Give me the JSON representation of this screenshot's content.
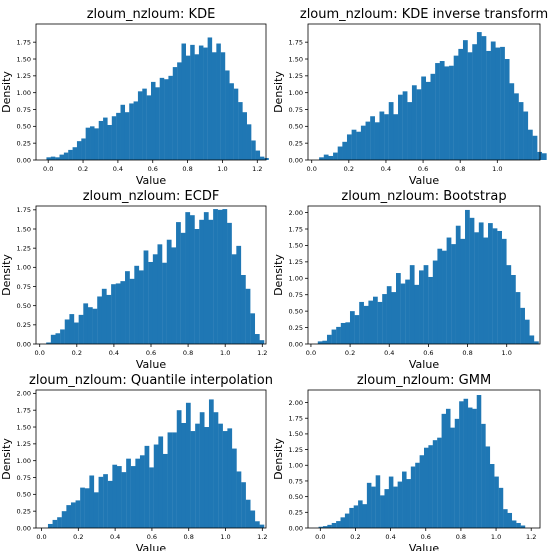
{
  "figure": {
    "background": "#ffffff",
    "bar_color": "#1f77b4"
  },
  "chart_data": [
    {
      "type": "bar",
      "title": "zloum_nzloum: KDE",
      "xlabel": "Value",
      "ylabel": "Density",
      "xlim": [
        -0.07,
        1.25
      ],
      "ylim": [
        0,
        2.02
      ],
      "xticks": [
        0.0,
        0.2,
        0.4,
        0.6,
        0.8,
        1.0,
        1.2
      ],
      "yticks": [
        0.0,
        0.25,
        0.5,
        0.75,
        1.0,
        1.25,
        1.5,
        1.75
      ],
      "xtick_labels": [
        "0.0",
        "0.2",
        "0.4",
        "0.6",
        "0.8",
        "1.0",
        "1.2"
      ],
      "ytick_labels": [
        "0.00",
        "0.25",
        "0.50",
        "0.75",
        "1.00",
        "1.25",
        "1.50",
        "1.75"
      ],
      "bin_start": -0.01,
      "bin_width": 0.025,
      "values": [
        0.04,
        0.05,
        0.04,
        0.08,
        0.11,
        0.15,
        0.19,
        0.28,
        0.32,
        0.48,
        0.5,
        0.47,
        0.58,
        0.63,
        0.52,
        0.65,
        0.7,
        0.82,
        0.71,
        0.84,
        0.87,
        1.02,
        1.06,
        0.96,
        1.16,
        1.08,
        1.22,
        1.2,
        1.25,
        1.38,
        1.45,
        1.73,
        1.55,
        1.71,
        1.57,
        1.7,
        1.67,
        1.82,
        1.6,
        1.73,
        1.6,
        1.33,
        1.14,
        1.06,
        0.86,
        0.71,
        0.53,
        0.29,
        0.14,
        0.05,
        0.03
      ]
    },
    {
      "type": "bar",
      "title": "zloum_nzloum: KDE inverse transform",
      "xlabel": "Value",
      "ylabel": "Density",
      "xlim": [
        -0.02,
        1.23
      ],
      "ylim": [
        0,
        2.02
      ],
      "xticks": [
        0.0,
        0.2,
        0.4,
        0.6,
        0.8,
        1.0
      ],
      "yticks": [
        0.0,
        0.25,
        0.5,
        0.75,
        1.0,
        1.25,
        1.5,
        1.75
      ],
      "xtick_labels": [
        "0.0",
        "0.2",
        "0.4",
        "0.6",
        "0.8",
        "1.0"
      ],
      "ytick_labels": [
        "0.00",
        "0.25",
        "0.50",
        "0.75",
        "1.00",
        "1.25",
        "1.50",
        "1.75"
      ],
      "bin_start": 0.04,
      "bin_width": 0.025,
      "values": [
        0.04,
        0.08,
        0.06,
        0.11,
        0.2,
        0.27,
        0.38,
        0.45,
        0.42,
        0.51,
        0.57,
        0.65,
        0.56,
        0.72,
        0.68,
        0.86,
        0.68,
        0.97,
        1.02,
        0.86,
        1.11,
        1.05,
        1.24,
        1.16,
        1.28,
        1.44,
        1.47,
        1.39,
        1.4,
        1.55,
        1.65,
        1.78,
        1.6,
        1.72,
        1.9,
        1.84,
        1.62,
        1.76,
        1.67,
        1.68,
        1.5,
        1.14,
        0.99,
        0.86,
        0.72,
        0.45,
        0.36,
        0.12,
        0.1
      ]
    },
    {
      "type": "bar",
      "title": "zloum_nzloum: ECDF",
      "xlabel": "Value",
      "ylabel": "Density",
      "xlim": [
        -0.02,
        1.22
      ],
      "ylim": [
        0,
        1.8
      ],
      "xticks": [
        0.0,
        0.2,
        0.4,
        0.6,
        0.8,
        1.0,
        1.2
      ],
      "yticks": [
        0.0,
        0.25,
        0.5,
        0.75,
        1.0,
        1.25,
        1.5,
        1.75
      ],
      "xtick_labels": [
        "0.0",
        "0.2",
        "0.4",
        "0.6",
        "0.8",
        "1.0",
        "1.2"
      ],
      "ytick_labels": [
        "0.00",
        "0.25",
        "0.50",
        "0.75",
        "1.00",
        "1.25",
        "1.50",
        "1.75"
      ],
      "bin_start": 0.035,
      "bin_width": 0.025,
      "values": [
        0.02,
        0.12,
        0.14,
        0.19,
        0.32,
        0.39,
        0.28,
        0.38,
        0.53,
        0.48,
        0.46,
        0.62,
        0.72,
        0.64,
        0.78,
        0.79,
        0.82,
        0.95,
        0.85,
        1.02,
        0.96,
        1.22,
        1.07,
        1.17,
        1.3,
        1.06,
        1.36,
        1.26,
        1.59,
        1.45,
        1.72,
        1.68,
        1.5,
        1.62,
        1.72,
        1.62,
        1.76,
        1.75,
        1.76,
        1.58,
        1.17,
        1.28,
        0.9,
        0.72,
        0.4,
        0.13,
        0.05
      ]
    },
    {
      "type": "bar",
      "title": "zloum_nzloum: Bootstrap",
      "xlabel": "Value",
      "ylabel": "Density",
      "xlim": [
        -0.015,
        1.17
      ],
      "ylim": [
        0,
        2.1
      ],
      "xticks": [
        0.0,
        0.2,
        0.4,
        0.6,
        0.8,
        1.0
      ],
      "yticks": [
        0.0,
        0.25,
        0.5,
        0.75,
        1.0,
        1.25,
        1.5,
        1.75,
        2.0
      ],
      "xtick_labels": [
        "0.0",
        "0.2",
        "0.4",
        "0.6",
        "0.8",
        "1.0"
      ],
      "ytick_labels": [
        "0.00",
        "0.25",
        "0.50",
        "0.75",
        "1.00",
        "1.25",
        "1.50",
        "1.75",
        "2.00"
      ],
      "bin_start": 0.035,
      "bin_width": 0.0235,
      "values": [
        0.04,
        0.05,
        0.14,
        0.22,
        0.26,
        0.32,
        0.33,
        0.5,
        0.44,
        0.64,
        0.58,
        0.66,
        0.72,
        0.64,
        0.76,
        0.88,
        0.79,
        1.08,
        0.92,
        0.98,
        1.2,
        0.9,
        1.12,
        1.2,
        1.02,
        1.27,
        1.45,
        1.42,
        1.62,
        1.52,
        1.8,
        1.6,
        2.04,
        1.92,
        1.7,
        1.85,
        1.62,
        1.84,
        1.76,
        1.72,
        1.6,
        1.2,
        1.05,
        0.79,
        0.55,
        0.37,
        0.13,
        0.04
      ]
    },
    {
      "type": "bar",
      "title": "zloum_nzloum: Quantile interpolation",
      "xlabel": "Value",
      "ylabel": "Density",
      "xlim": [
        -0.03,
        1.22
      ],
      "ylim": [
        0,
        2.05
      ],
      "xticks": [
        0.0,
        0.2,
        0.4,
        0.6,
        0.8,
        1.0,
        1.2
      ],
      "yticks": [
        0.0,
        0.25,
        0.5,
        0.75,
        1.0,
        1.25,
        1.5,
        1.75,
        2.0
      ],
      "xtick_labels": [
        "0.0",
        "0.2",
        "0.4",
        "0.6",
        "0.8",
        "1.0",
        "1.2"
      ],
      "ytick_labels": [
        "0.00",
        "0.25",
        "0.50",
        "0.75",
        "1.00",
        "1.25",
        "1.50",
        "1.75",
        "2.00"
      ],
      "bin_start": 0.035,
      "bin_width": 0.025,
      "values": [
        0.06,
        0.12,
        0.16,
        0.25,
        0.34,
        0.38,
        0.41,
        0.6,
        0.59,
        0.78,
        0.53,
        0.76,
        0.8,
        0.7,
        0.94,
        0.92,
        0.83,
        1.03,
        0.92,
        1.03,
        1.08,
        1.22,
        0.9,
        1.24,
        1.36,
        1.1,
        1.42,
        1.42,
        1.75,
        1.56,
        1.86,
        1.44,
        1.55,
        1.72,
        1.5,
        1.91,
        1.72,
        1.55,
        1.44,
        1.48,
        1.18,
        0.84,
        0.68,
        0.42,
        0.26,
        0.1,
        0.05
      ]
    },
    {
      "type": "bar",
      "title": "zloum_nzloum: GMM",
      "xlabel": "Value",
      "ylabel": "Density",
      "xlim": [
        -0.07,
        1.25
      ],
      "ylim": [
        0,
        2.2
      ],
      "xticks": [
        0.0,
        0.2,
        0.4,
        0.6,
        0.8,
        1.0,
        1.2
      ],
      "yticks": [
        0.0,
        0.25,
        0.5,
        0.75,
        1.0,
        1.25,
        1.5,
        1.75,
        2.0
      ],
      "xtick_labels": [
        "0.0",
        "0.2",
        "0.4",
        "0.6",
        "0.8",
        "1.0",
        "1.2"
      ],
      "ytick_labels": [
        "0.00",
        "0.25",
        "0.50",
        "0.75",
        "1.00",
        "1.25",
        "1.50",
        "1.75",
        "2.00"
      ],
      "bin_start": -0.01,
      "bin_width": 0.025,
      "values": [
        0.02,
        0.03,
        0.05,
        0.08,
        0.11,
        0.17,
        0.23,
        0.32,
        0.36,
        0.44,
        0.38,
        0.72,
        0.66,
        0.84,
        0.52,
        0.62,
        0.82,
        0.66,
        0.74,
        0.9,
        0.78,
        0.98,
        1.04,
        1.16,
        1.28,
        1.32,
        1.4,
        1.44,
        1.82,
        1.9,
        1.6,
        1.74,
        2.02,
        2.06,
        1.92,
        1.9,
        2.12,
        1.66,
        1.3,
        1.02,
        0.82,
        0.64,
        0.3,
        0.24,
        0.12,
        0.08,
        0.04
      ]
    }
  ]
}
